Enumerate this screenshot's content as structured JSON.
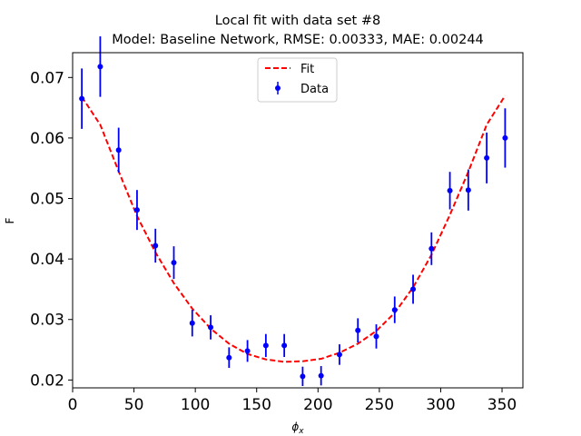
{
  "chart_data": {
    "type": "scatter",
    "title": "Local fit with data set #8",
    "subtitle": "Model: Baseline Network, RMSE: 0.00333, MAE: 0.00244",
    "xlabel": "ϕ",
    "xlabel_sub": "x",
    "ylabel": "F",
    "xlim": [
      0,
      367
    ],
    "ylim": [
      0.0187,
      0.0741
    ],
    "xticks": [
      0,
      50,
      100,
      150,
      200,
      250,
      300,
      350
    ],
    "yticks": [
      0.02,
      0.03,
      0.04,
      0.05,
      0.06,
      0.07
    ],
    "xtick_labels": [
      "0",
      "50",
      "100",
      "150",
      "200",
      "250",
      "300",
      "350"
    ],
    "ytick_labels": [
      "0.02",
      "0.03",
      "0.04",
      "0.05",
      "0.06",
      "0.07"
    ],
    "grid": false,
    "legend": {
      "placement": "top-center",
      "entries": [
        "Fit",
        "Data"
      ]
    },
    "series": [
      {
        "name": "Fit",
        "style": "dashed-line",
        "color": "#ff0000",
        "x": [
          7.5,
          22.5,
          37.5,
          52.5,
          67.5,
          82.5,
          97.5,
          112.5,
          127.5,
          142.5,
          157.5,
          172.5,
          187.5,
          202.5,
          217.5,
          232.5,
          247.5,
          262.5,
          277.5,
          292.5,
          307.5,
          322.5,
          337.5,
          352.5
        ],
        "y": [
          0.0668,
          0.0622,
          0.0545,
          0.0471,
          0.0411,
          0.036,
          0.0318,
          0.0285,
          0.026,
          0.0243,
          0.0234,
          0.023,
          0.0231,
          0.0235,
          0.0245,
          0.026,
          0.0281,
          0.0311,
          0.0353,
          0.0407,
          0.0473,
          0.0544,
          0.0622,
          0.067
        ]
      },
      {
        "name": "Data",
        "style": "errorbar",
        "color": "#0000ff",
        "x": [
          7.5,
          22.5,
          37.5,
          52.5,
          67.5,
          82.5,
          97.5,
          112.5,
          127.5,
          142.5,
          157.5,
          172.5,
          187.5,
          202.5,
          217.5,
          232.5,
          247.5,
          262.5,
          277.5,
          292.5,
          307.5,
          322.5,
          337.5,
          352.5
        ],
        "y": [
          0.0665,
          0.0718,
          0.058,
          0.0481,
          0.0422,
          0.0394,
          0.0294,
          0.0287,
          0.0237,
          0.0248,
          0.0257,
          0.0257,
          0.0206,
          0.0207,
          0.0242,
          0.0282,
          0.0272,
          0.0316,
          0.035,
          0.0417,
          0.0513,
          0.0514,
          0.0567,
          0.06
        ],
        "yerr": [
          0.005,
          0.005,
          0.0037,
          0.0033,
          0.0028,
          0.0027,
          0.0022,
          0.002,
          0.0017,
          0.0018,
          0.0019,
          0.0019,
          0.0016,
          0.0016,
          0.0017,
          0.002,
          0.002,
          0.0022,
          0.0024,
          0.0027,
          0.0031,
          0.0034,
          0.0042,
          0.0049
        ]
      }
    ]
  }
}
